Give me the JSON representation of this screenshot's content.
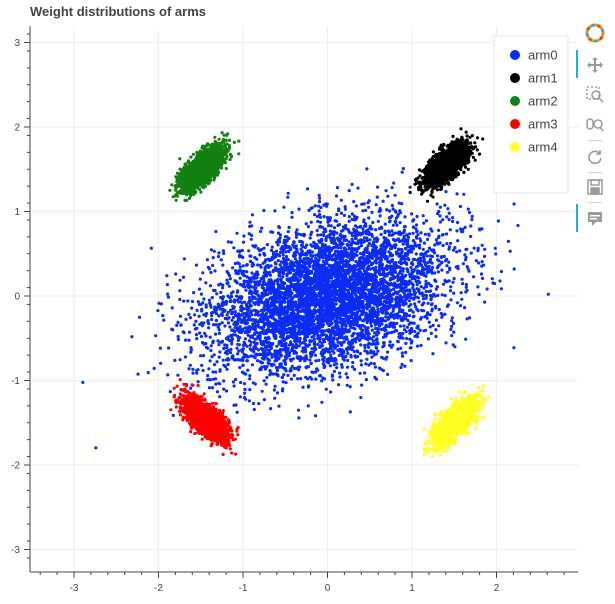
{
  "chart_data": {
    "type": "scatter",
    "title": "Weight distributions of arms",
    "xlabel": "",
    "ylabel": "",
    "xlim": [
      -3.4,
      3.0
    ],
    "ylim": [
      -3.3,
      3.2
    ],
    "xticks": [
      -3,
      -2,
      -1,
      0,
      1,
      2
    ],
    "yticks": [
      -3,
      -2,
      -1,
      0,
      1,
      2,
      3
    ],
    "grid": true,
    "legend_position": "top-right",
    "series": [
      {
        "name": "arm0",
        "color": "#0b2cf5",
        "distribution": "gaussian",
        "center": [
          0.0,
          0.0
        ],
        "std": [
          0.7,
          0.45
        ],
        "correlation": 0.35,
        "point_count": 5500
      },
      {
        "name": "arm1",
        "color": "#000000",
        "distribution": "gaussian",
        "center": [
          1.4,
          1.55
        ],
        "std": [
          0.12,
          0.12
        ],
        "correlation": 0.7,
        "point_count": 2500
      },
      {
        "name": "arm2",
        "color": "#128012",
        "distribution": "gaussian",
        "center": [
          -1.5,
          1.5
        ],
        "std": [
          0.12,
          0.12
        ],
        "correlation": 0.7,
        "point_count": 2500
      },
      {
        "name": "arm3",
        "color": "#ff0000",
        "distribution": "gaussian",
        "center": [
          -1.45,
          -1.45
        ],
        "std": [
          0.12,
          0.12
        ],
        "correlation": -0.7,
        "point_count": 2500
      },
      {
        "name": "arm4",
        "color": "#ffff22",
        "distribution": "gaussian",
        "center": [
          1.5,
          -1.5
        ],
        "std": [
          0.12,
          0.12
        ],
        "correlation": 0.7,
        "point_count": 2500
      }
    ]
  },
  "toolbar": {
    "tools": [
      {
        "name": "bokeh-logo-icon",
        "interactable": false
      },
      {
        "name": "pan-icon",
        "interactable": true,
        "active": true
      },
      {
        "name": "box-zoom-icon",
        "interactable": true
      },
      {
        "name": "wheel-zoom-icon",
        "interactable": true
      },
      {
        "name": "reset-icon",
        "interactable": true
      },
      {
        "name": "save-icon",
        "interactable": true
      },
      {
        "name": "hover-icon",
        "interactable": true,
        "active": true
      }
    ]
  }
}
